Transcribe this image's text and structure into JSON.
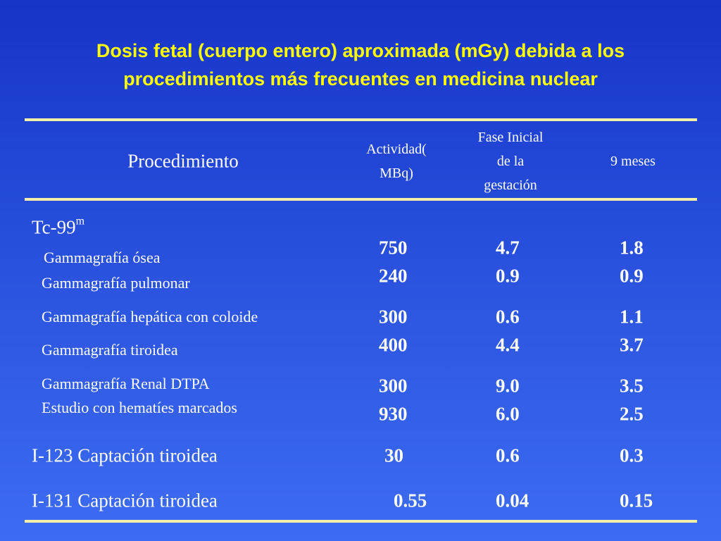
{
  "title": {
    "line1": "Dosis fetal (cuerpo entero) aproximada (mGy) debida a los",
    "line2": "procedimientos más frecuentes en medicina nuclear"
  },
  "header": {
    "procedure": "Procedimiento",
    "activity_1": "Actividad(",
    "activity_2": "MBq)",
    "early_1": "Fase Inicial",
    "early_2": "de la",
    "early_3": "gestación",
    "nine": "9 meses"
  },
  "group_tc": {
    "label": "Tc-99",
    "sup": "m"
  },
  "rows": [
    {
      "name": "Gammagrafía ósea",
      "activity": "750",
      "early": "4.7",
      "nine": "1.8"
    },
    {
      "name": "Gammagrafía pulmonar",
      "activity": "240",
      "early": "0.9",
      "nine": "0.9"
    },
    {
      "name": "Gammagrafía hepática con coloide",
      "activity": "300",
      "early": "0.6",
      "nine": "1.1"
    },
    {
      "name": "Gammagrafía tiroidea",
      "activity": "400",
      "early": "4.4",
      "nine": "3.7"
    },
    {
      "name": "Gammagrafía Renal DTPA",
      "activity": "300",
      "early": "9.0",
      "nine": "3.5"
    },
    {
      "name": "Estudio con hematíes marcados",
      "activity": "930",
      "early": "6.0",
      "nine": "2.5"
    },
    {
      "name": "I-123 Captación tiroidea",
      "activity": "30",
      "early": "0.6",
      "nine": "0.3"
    },
    {
      "name": "I-131 Captación tiroidea",
      "activity": "0.55",
      "early": "0.04",
      "nine": "0.15"
    }
  ]
}
